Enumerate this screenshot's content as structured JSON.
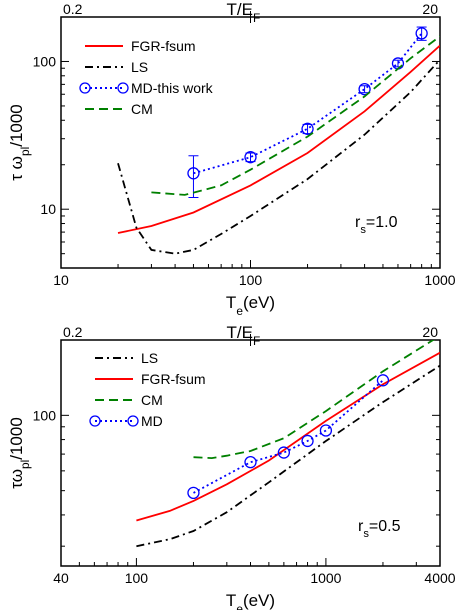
{
  "chart_data": [
    {
      "type": "line",
      "panel": "top",
      "x_scale": "log",
      "y_scale": "log",
      "xlim": [
        10,
        1000
      ],
      "ylim": [
        4,
        200
      ],
      "xlabel": "T",
      "xlabel_sub": "e",
      "xlabel_unit": "(eV)",
      "ylabel": "τ ω",
      "ylabel_sub": "pl",
      "ylabel_suffix": "/1000",
      "x_ticks": [
        10,
        100,
        1000
      ],
      "x_tick_labels": [
        "10",
        "100",
        "1000"
      ],
      "y_ticks": [
        10,
        100
      ],
      "y_tick_labels": [
        "10",
        "100"
      ],
      "top_axis": {
        "label": "T/E",
        "label_sub": "F",
        "tick_labels": [
          "0.2",
          "20"
        ]
      },
      "annotation": {
        "text": "r",
        "sub": "s",
        "rest": "=1.0"
      },
      "legend_position": "top-left",
      "series": [
        {
          "name": "FGR-fsum",
          "style": "solid",
          "color": "#ff0000",
          "x": [
            20,
            30,
            50,
            100,
            200,
            400,
            700,
            1000
          ],
          "y": [
            6.9,
            7.7,
            9.5,
            14.5,
            24,
            46,
            85,
            128
          ]
        },
        {
          "name": "LS",
          "style": "dash-dot",
          "color": "#000000",
          "x": [
            20,
            25,
            30,
            40,
            50,
            70,
            100,
            200,
            400,
            700,
            1000
          ],
          "y": [
            20.5,
            7.5,
            5.3,
            5.0,
            5.3,
            6.8,
            9.0,
            16,
            32,
            62,
            103
          ]
        },
        {
          "name": "MD-this work",
          "style": "dotted-markers",
          "color": "#0000ff",
          "x": [
            50,
            100,
            200,
            400,
            600,
            800
          ],
          "y": [
            17.5,
            22.5,
            35,
            65,
            97,
            155
          ],
          "err": [
            5.5,
            1.5,
            2.5,
            3.5,
            5,
            16
          ]
        },
        {
          "name": "CM",
          "style": "dashed",
          "color": "#008000",
          "x": [
            30,
            45,
            70,
            100,
            200,
            400,
            700,
            1000
          ],
          "y": [
            13,
            12.5,
            14.5,
            18.5,
            31,
            58,
            105,
            148
          ]
        }
      ]
    },
    {
      "type": "line",
      "panel": "bottom",
      "x_scale": "log",
      "y_scale": "log",
      "xlim": [
        40,
        4000
      ],
      "ylim": [
        25,
        200
      ],
      "xlabel": "T",
      "xlabel_sub": "e",
      "xlabel_unit": "(eV)",
      "ylabel": "τω",
      "ylabel_sub": "pl",
      "ylabel_suffix": "/1000",
      "x_ticks": [
        40,
        100,
        1000,
        4000
      ],
      "x_tick_labels": [
        "40",
        "100",
        "1000",
        "4000"
      ],
      "y_ticks": [
        100
      ],
      "y_tick_labels": [
        "100"
      ],
      "top_axis": {
        "label": "T/E",
        "label_sub": "F",
        "tick_labels": [
          "0.2",
          "20"
        ]
      },
      "annotation": {
        "text": "r",
        "sub": "s",
        "rest": "=0.5"
      },
      "legend_position": "top-left",
      "series": [
        {
          "name": "LS",
          "style": "dash-dot",
          "color": "#000000",
          "x": [
            100,
            150,
            200,
            300,
            500,
            1000,
            2000,
            4000
          ],
          "y": [
            30,
            32,
            34.5,
            41,
            54,
            79,
            113,
            158
          ]
        },
        {
          "name": "FGR-fsum",
          "style": "solid",
          "color": "#ff0000",
          "x": [
            100,
            150,
            200,
            300,
            500,
            1000,
            2000,
            4000
          ],
          "y": [
            38,
            41.5,
            45.5,
            53,
            66,
            95,
            133,
            178
          ]
        },
        {
          "name": "CM",
          "style": "dashed",
          "color": "#008000",
          "x": [
            200,
            250,
            300,
            400,
            600,
            1000,
            2000,
            4000
          ],
          "y": [
            68,
            67.5,
            69,
            72,
            81,
            104,
            150,
            208
          ]
        },
        {
          "name": "MD",
          "style": "dotted-markers",
          "color": "#0000ff",
          "x": [
            200,
            400,
            600,
            800,
            1000,
            2000
          ],
          "y": [
            49,
            65,
            71,
            79,
            87,
            138
          ]
        }
      ]
    }
  ]
}
